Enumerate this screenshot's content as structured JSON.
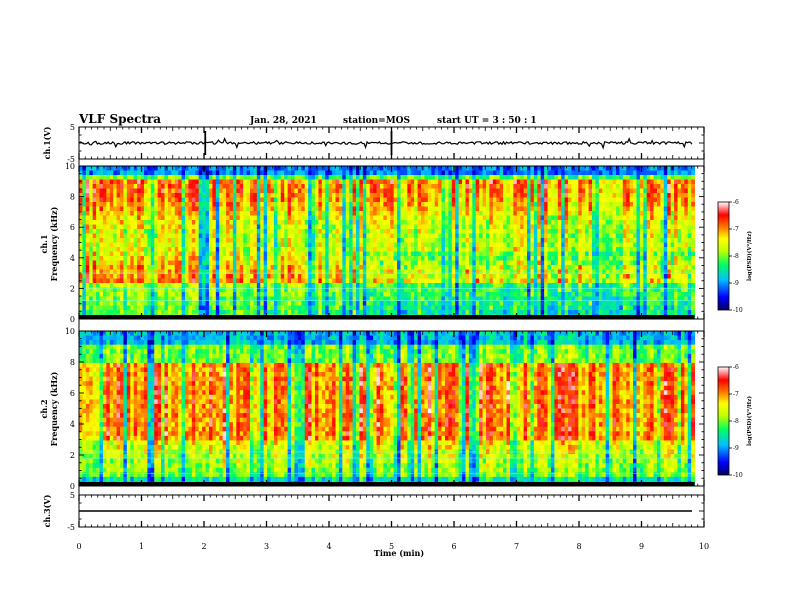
{
  "header": {
    "title": "VLF Spectra",
    "date": "Jan. 28, 2021",
    "station": "station=MOS",
    "start": "start UT =  3 : 50 : 1"
  },
  "chart_data": {
    "type": "heatmap",
    "x": {
      "label": "Time  (min)",
      "range": [
        0,
        10
      ],
      "ticks": [
        "0",
        "1",
        "2",
        "3",
        "4",
        "5",
        "6",
        "7",
        "8",
        "9",
        "10"
      ],
      "data_end": 9.85
    },
    "panels": [
      {
        "id": "ch1v",
        "type": "line",
        "ylabel": "ch.1(V)",
        "ylim": [
          -5,
          5
        ],
        "yticks": [
          "5",
          "-5"
        ],
        "baseline": 0
      },
      {
        "id": "ch1",
        "type": "heatmap",
        "label": "ch.1",
        "ylabel": "Frequency  (kHz)",
        "ylim": [
          0,
          10
        ],
        "yticks": [
          "0",
          "2",
          "4",
          "6",
          "8",
          "10"
        ],
        "colorbar": {
          "label": "log(PSD)(V²/Hz)",
          "range": [
            -10,
            -6
          ],
          "ticks": [
            "-6",
            "-7",
            "-8",
            "-9",
            "-10"
          ]
        },
        "profile": "ch1"
      },
      {
        "id": "ch2",
        "type": "heatmap",
        "label": "ch.2",
        "ylabel": "Frequency  (kHz)",
        "ylim": [
          0,
          10
        ],
        "yticks": [
          "0",
          "2",
          "4",
          "6",
          "8",
          "10"
        ],
        "colorbar": {
          "label": "log(PSD)(V²/Hz)",
          "range": [
            -10,
            -6
          ],
          "ticks": [
            "-6",
            "-7",
            "-8",
            "-9",
            "-10"
          ]
        },
        "profile": "ch2"
      },
      {
        "id": "ch3v",
        "type": "line",
        "ylabel": "ch.3(V)",
        "ylim": [
          -5,
          5
        ],
        "yticks": [
          "5",
          "-5"
        ],
        "baseline": 0
      }
    ]
  },
  "colors": {
    "scale": [
      "#000060",
      "#0000ff",
      "#00c0ff",
      "#00ff60",
      "#c0ff00",
      "#ffff00",
      "#ff8000",
      "#ff0000",
      "#ffffff"
    ]
  }
}
